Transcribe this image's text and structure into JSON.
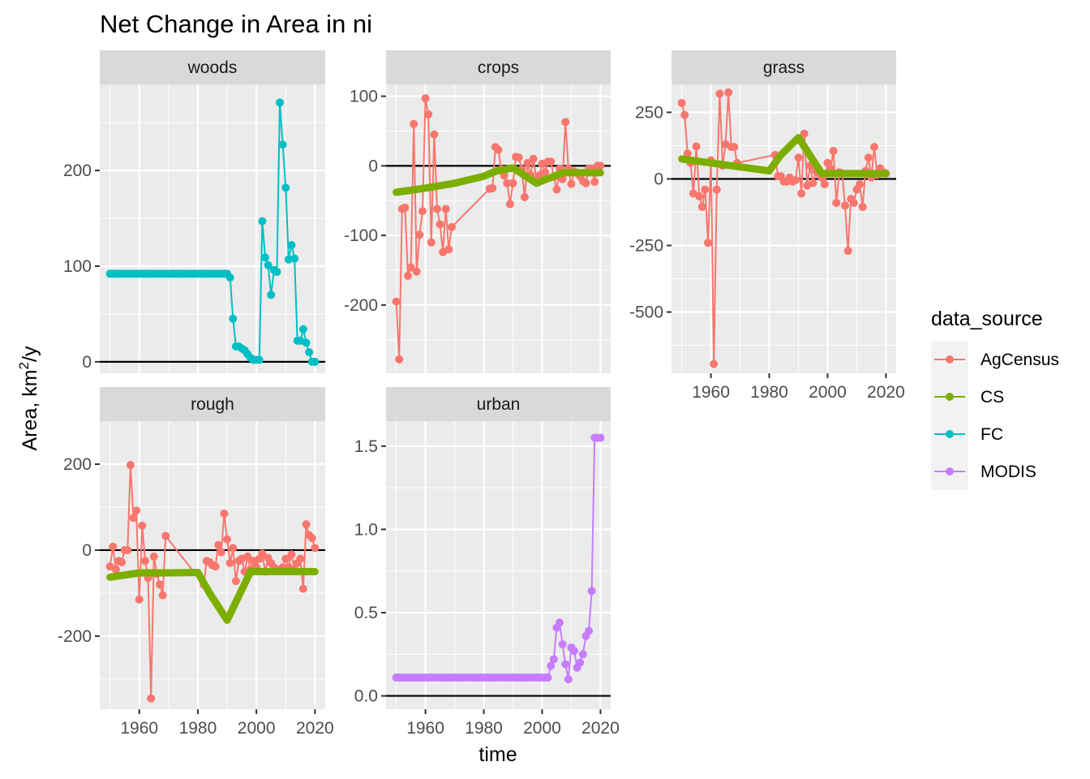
{
  "chart_data": {
    "type": "line",
    "title": "Net Change in Area in ni",
    "xlabel": "time",
    "ylabel_prefix": "Area,  km",
    "ylabel_sup": "2",
    "ylabel_suffix": "/y",
    "hline_y": 0,
    "grid": true,
    "legend": {
      "title": "data_source",
      "position": "right",
      "entries": [
        {
          "name": "AgCensus",
          "color": "#F8766D"
        },
        {
          "name": "CS",
          "color": "#7CAE00"
        },
        {
          "name": "FC",
          "color": "#00BFC4"
        },
        {
          "name": "MODIS",
          "color": "#C77CFF"
        }
      ]
    },
    "x_axis": {
      "lim": [
        1946.5,
        2023.5
      ],
      "ticks": [
        1960,
        1980,
        2000,
        2020
      ],
      "tick_labels": [
        "1960",
        "1980",
        "2000",
        "2020"
      ]
    },
    "panels": [
      {
        "name": "woods",
        "ylim": [
          -12,
          290
        ],
        "yticks": [
          0,
          100,
          200
        ],
        "ytick_labels": [
          "0",
          "100",
          "200"
        ],
        "series": [
          {
            "source": "FC",
            "style": "point-line",
            "x": [
              1950,
              1951,
              1952,
              1953,
              1954,
              1955,
              1956,
              1957,
              1958,
              1959,
              1960,
              1961,
              1962,
              1963,
              1964,
              1965,
              1966,
              1967,
              1968,
              1969,
              1970,
              1971,
              1972,
              1973,
              1974,
              1975,
              1976,
              1977,
              1978,
              1979,
              1980,
              1981,
              1982,
              1983,
              1984,
              1985,
              1986,
              1987,
              1988,
              1989,
              1990,
              1991,
              1992,
              1993,
              1994,
              1995,
              1996,
              1997,
              1998,
              1999,
              2000,
              2001,
              2002,
              2003,
              2004,
              2005,
              2006,
              2007,
              2008,
              2009,
              2010,
              2011,
              2012,
              2013,
              2014,
              2015,
              2016,
              2017,
              2018,
              2019,
              2020
            ],
            "y": [
              92,
              92,
              92,
              92,
              92,
              92,
              92,
              92,
              92,
              92,
              92,
              92,
              92,
              92,
              92,
              92,
              92,
              92,
              92,
              92,
              92,
              92,
              92,
              92,
              92,
              92,
              92,
              92,
              92,
              92,
              92,
              92,
              92,
              92,
              92,
              92,
              92,
              92,
              92,
              92,
              92,
              88,
              45,
              16,
              16,
              14,
              12,
              8,
              4,
              2,
              2,
              2,
              147,
              109,
              101,
              70,
              96,
              94,
              271,
              227,
              182,
              107,
              122,
              108,
              22,
              22,
              34,
              20,
              10,
              0,
              0
            ]
          }
        ]
      },
      {
        "name": "crops",
        "ylim": [
          -298,
          117
        ],
        "yticks": [
          -200,
          -100,
          0,
          100
        ],
        "ytick_labels": [
          "-200",
          "-100",
          "0",
          "100"
        ],
        "series": [
          {
            "source": "AgCensus",
            "style": "point-line",
            "x": [
              1950,
              1951,
              1952,
              1953,
              1954,
              1955,
              1956,
              1957,
              1958,
              1959,
              1960,
              1961,
              1962,
              1963,
              1964,
              1965,
              1966,
              1967,
              1968,
              1969,
              1982,
              1983,
              1984,
              1985,
              1986,
              1987,
              1988,
              1989,
              1990,
              1991,
              1992,
              1993,
              1994,
              1995,
              1996,
              1997,
              1998,
              1999,
              2000,
              2001,
              2002,
              2003,
              2004,
              2005,
              2006,
              2007,
              2008,
              2009,
              2010,
              2011,
              2012,
              2013,
              2014,
              2015,
              2016,
              2017,
              2018,
              2019,
              2020
            ],
            "y": [
              -195,
              -278,
              -62,
              -60,
              -158,
              -146,
              60,
              -152,
              -99,
              -65,
              97,
              74,
              -110,
              45,
              -62,
              -84,
              -124,
              -62,
              -120,
              -88,
              -33,
              -32,
              27,
              23,
              -5,
              -14,
              -25,
              -55,
              -25,
              13,
              12,
              -5,
              -45,
              4,
              -13,
              10,
              -19,
              -14,
              3,
              -9,
              6,
              6,
              -16,
              -34,
              -4,
              -19,
              63,
              -4,
              -26,
              -8,
              -10,
              -15,
              -22,
              -25,
              -4,
              -4,
              -23,
              0,
              0
            ]
          },
          {
            "source": "CS",
            "style": "thick-line",
            "x": [
              1950,
              1960,
              1970,
              1980,
              1984,
              1990,
              1998,
              2007,
              2020
            ],
            "y": [
              -38,
              -32,
              -25,
              -15,
              -8,
              -3,
              -25,
              -10,
              -10
            ]
          }
        ]
      },
      {
        "name": "grass",
        "ylim": [
          -730,
          355
        ],
        "yticks": [
          -500,
          -250,
          0,
          250
        ],
        "ytick_labels": [
          "-500",
          "-250",
          "0",
          "250"
        ],
        "series": [
          {
            "source": "AgCensus",
            "style": "point-line",
            "x": [
              1950,
              1951,
              1952,
              1953,
              1954,
              1955,
              1956,
              1957,
              1958,
              1959,
              1960,
              1961,
              1962,
              1963,
              1964,
              1965,
              1966,
              1967,
              1968,
              1969,
              1982,
              1983,
              1984,
              1985,
              1986,
              1987,
              1988,
              1989,
              1990,
              1991,
              1992,
              1993,
              1994,
              1995,
              1996,
              1997,
              1998,
              1999,
              2000,
              2001,
              2002,
              2003,
              2004,
              2005,
              2006,
              2007,
              2008,
              2009,
              2010,
              2011,
              2012,
              2013,
              2014,
              2015,
              2016,
              2017,
              2018,
              2019,
              2020
            ],
            "y": [
              285,
              240,
              95,
              60,
              -55,
              122,
              -65,
              -105,
              -40,
              -240,
              70,
              -695,
              -40,
              320,
              50,
              130,
              325,
              120,
              120,
              60,
              90,
              10,
              10,
              -10,
              -10,
              5,
              -10,
              -5,
              80,
              -55,
              170,
              -25,
              50,
              -15,
              30,
              20,
              5,
              -20,
              60,
              40,
              105,
              -90,
              25,
              20,
              -100,
              -270,
              -75,
              -90,
              -40,
              -20,
              -105,
              30,
              80,
              5,
              120,
              15,
              40,
              25,
              20
            ]
          },
          {
            "source": "CS",
            "style": "thick-line",
            "x": [
              1950,
              1960,
              1970,
              1980,
              1984,
              1990,
              1998,
              2007,
              2020
            ],
            "y": [
              75,
              60,
              45,
              30,
              90,
              155,
              20,
              20,
              20
            ]
          }
        ]
      },
      {
        "name": "rough",
        "ylim": [
          -370,
          300
        ],
        "yticks": [
          -200,
          0,
          200
        ],
        "ytick_labels": [
          "-200",
          "0",
          "200"
        ],
        "series": [
          {
            "source": "AgCensus",
            "style": "point-line",
            "x": [
              1950,
              1951,
              1952,
              1953,
              1954,
              1955,
              1956,
              1957,
              1958,
              1959,
              1960,
              1961,
              1962,
              1963,
              1964,
              1965,
              1966,
              1967,
              1968,
              1969,
              1982,
              1983,
              1984,
              1985,
              1986,
              1987,
              1988,
              1989,
              1990,
              1991,
              1992,
              1993,
              1994,
              1995,
              1996,
              1997,
              1998,
              1999,
              2000,
              2001,
              2002,
              2003,
              2004,
              2005,
              2006,
              2007,
              2008,
              2009,
              2010,
              2011,
              2012,
              2013,
              2014,
              2015,
              2016,
              2017,
              2018,
              2019,
              2020
            ],
            "y": [
              -38,
              8,
              -45,
              -25,
              -28,
              0,
              0,
              198,
              75,
              92,
              -115,
              57,
              -25,
              -65,
              -345,
              -15,
              -55,
              -80,
              -105,
              33,
              -80,
              -25,
              -28,
              -35,
              -38,
              12,
              -5,
              85,
              25,
              -30,
              5,
              -72,
              -25,
              -20,
              -50,
              -15,
              -45,
              -25,
              -40,
              -20,
              -8,
              -50,
              -18,
              -30,
              -40,
              -45,
              -45,
              -40,
              -20,
              -40,
              -10,
              -45,
              -30,
              -20,
              -90,
              60,
              35,
              28,
              5
            ]
          },
          {
            "source": "CS",
            "style": "thick-line",
            "x": [
              1950,
              1960,
              1970,
              1980,
              1984,
              1990,
              1998,
              2007,
              2020
            ],
            "y": [
              -63,
              -53,
              -53,
              -52,
              -100,
              -163,
              -50,
              -50,
              -50
            ]
          }
        ]
      },
      {
        "name": "urban",
        "ylim": [
          -0.08,
          1.65
        ],
        "yticks": [
          0.0,
          0.5,
          1.0,
          1.5
        ],
        "ytick_labels": [
          "0.0",
          "0.5",
          "1.0",
          "1.5"
        ],
        "series": [
          {
            "source": "MODIS",
            "style": "point-line",
            "x": [
              1950,
              1951,
              1952,
              1953,
              1954,
              1955,
              1956,
              1957,
              1958,
              1959,
              1960,
              1961,
              1962,
              1963,
              1964,
              1965,
              1966,
              1967,
              1968,
              1969,
              1970,
              1971,
              1972,
              1973,
              1974,
              1975,
              1976,
              1977,
              1978,
              1979,
              1980,
              1981,
              1982,
              1983,
              1984,
              1985,
              1986,
              1987,
              1988,
              1989,
              1990,
              1991,
              1992,
              1993,
              1994,
              1995,
              1996,
              1997,
              1998,
              1999,
              2000,
              2001,
              2002,
              2003,
              2004,
              2005,
              2006,
              2007,
              2008,
              2009,
              2010,
              2011,
              2012,
              2013,
              2014,
              2015,
              2016,
              2017,
              2018,
              2019,
              2020
            ],
            "y": [
              0.11,
              0.11,
              0.11,
              0.11,
              0.11,
              0.11,
              0.11,
              0.11,
              0.11,
              0.11,
              0.11,
              0.11,
              0.11,
              0.11,
              0.11,
              0.11,
              0.11,
              0.11,
              0.11,
              0.11,
              0.11,
              0.11,
              0.11,
              0.11,
              0.11,
              0.11,
              0.11,
              0.11,
              0.11,
              0.11,
              0.11,
              0.11,
              0.11,
              0.11,
              0.11,
              0.11,
              0.11,
              0.11,
              0.11,
              0.11,
              0.11,
              0.11,
              0.11,
              0.11,
              0.11,
              0.11,
              0.11,
              0.11,
              0.11,
              0.11,
              0.11,
              0.11,
              0.11,
              0.18,
              0.22,
              0.41,
              0.44,
              0.31,
              0.19,
              0.1,
              0.29,
              0.27,
              0.17,
              0.2,
              0.25,
              0.36,
              0.39,
              0.63,
              1.55,
              1.55,
              1.55
            ]
          }
        ]
      }
    ]
  }
}
